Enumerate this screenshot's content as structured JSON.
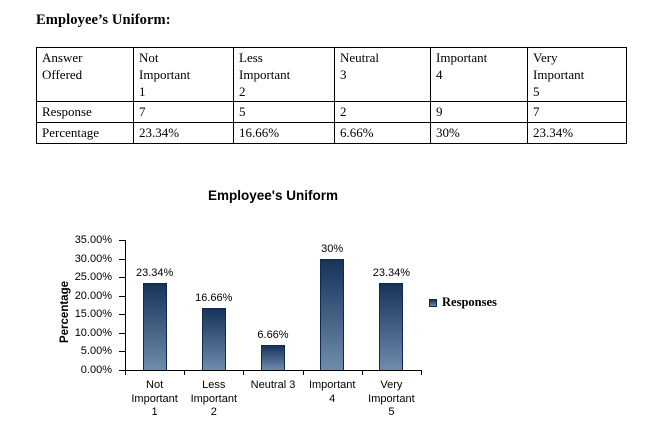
{
  "page": {
    "heading": "Employee’s Uniform:"
  },
  "table": {
    "columns": [
      "Answer\nOffered",
      "Not\nImportant\n1",
      "Less\nImportant\n2",
      "Neutral\n3",
      "Important\n4",
      "Very\nImportant\n5"
    ],
    "rows": [
      {
        "label": "Response",
        "values": [
          "7",
          "5",
          "2",
          "9",
          "7"
        ]
      },
      {
        "label": "Percentage",
        "values": [
          "23.34%",
          "16.66%",
          "6.66%",
          "30%",
          "23.34%"
        ]
      }
    ]
  },
  "chart_data": {
    "type": "bar",
    "title": "Employee's Uniform",
    "ylabel": "Percentage",
    "xlabel": "",
    "categories": [
      "Not Important 1",
      "Less Important 2",
      "Neutral 3",
      "Important 4",
      "Very Important 5"
    ],
    "categories_display": [
      "Not\nImportant\n1",
      "Less\nImportant\n2",
      "Neutral 3",
      "Important\n4",
      "Very\nImportant\n5"
    ],
    "series": [
      {
        "name": "Responses",
        "values": [
          23.34,
          16.66,
          6.66,
          30,
          23.34
        ]
      }
    ],
    "value_labels": [
      "23.34%",
      "16.66%",
      "6.66%",
      "30%",
      "23.34%"
    ],
    "ylim": [
      0,
      35
    ],
    "yticks": [
      "35.00%",
      "30.00%",
      "25.00%",
      "20.00%",
      "15.00%",
      "10.00%",
      "5.00%",
      "0.00%"
    ],
    "grid": false,
    "legend_position": "right",
    "legend_label": "Responses",
    "colors": {
      "bar_gradient_top": "#16335a",
      "bar_gradient_bottom": "#6e8cad",
      "bar_border": "#0e2a4c",
      "text": "#000000",
      "background": "#ffffff"
    }
  }
}
